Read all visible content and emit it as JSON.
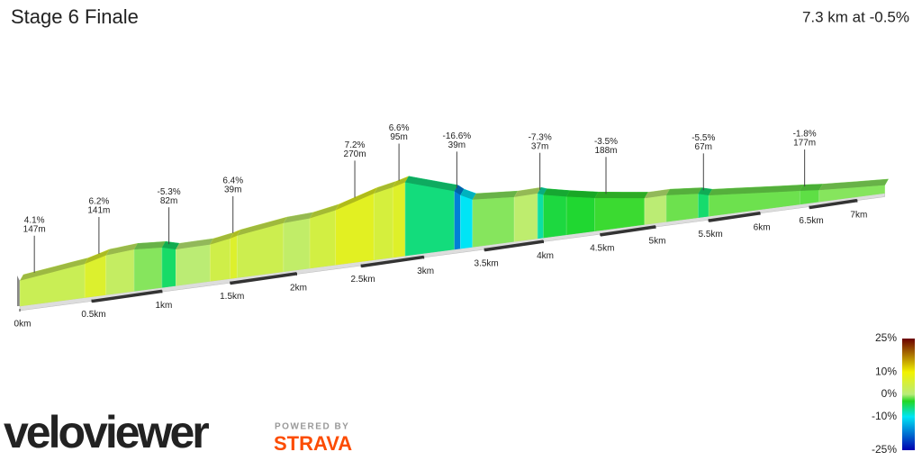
{
  "chart_data": {
    "type": "profile",
    "title": "Stage 6 Finale",
    "subtitle": "7.3 km at -0.5%",
    "xlim": [
      0,
      7.3
    ],
    "xticks": [
      {
        "value": 0,
        "label": "0km"
      },
      {
        "value": 0.5,
        "label": "0.5km"
      },
      {
        "value": 1,
        "label": "1km"
      },
      {
        "value": 1.5,
        "label": "1.5km"
      },
      {
        "value": 2,
        "label": "2km"
      },
      {
        "value": 2.5,
        "label": "2.5km"
      },
      {
        "value": 3,
        "label": "3km"
      },
      {
        "value": 3.5,
        "label": "3.5km"
      },
      {
        "value": 4,
        "label": "4km"
      },
      {
        "value": 4.5,
        "label": "4.5km"
      },
      {
        "value": 5,
        "label": "5km"
      },
      {
        "value": 5.5,
        "label": "5.5km"
      },
      {
        "value": 6,
        "label": "6km"
      },
      {
        "value": 6.5,
        "label": "6.5km"
      },
      {
        "value": 7,
        "label": "7km"
      }
    ],
    "segments": {
      "x": [
        0,
        0.45,
        0.6,
        0.8,
        1.0,
        1.1,
        1.35,
        1.5,
        1.55,
        1.9,
        2.1,
        2.3,
        2.6,
        2.75,
        2.85,
        3.25,
        3.3,
        3.4,
        3.75,
        3.95,
        4.0,
        4.2,
        4.45,
        4.9,
        5.1,
        5.4,
        5.5,
        6.4,
        6.6
      ],
      "grade": [
        3,
        6.2,
        2,
        -1,
        -5.3,
        0.5,
        4,
        6.4,
        3.5,
        1.5,
        4.5,
        7.2,
        5,
        6.6,
        -6,
        -16.6,
        -10,
        -1,
        1,
        -7.3,
        -4,
        -3.5,
        -2.5,
        0.5,
        -1.5,
        -5.5,
        -1.5,
        -1.8,
        -1
      ]
    },
    "climbs": [
      {
        "x": 0.1,
        "grade": "4.1%",
        "length": "147m"
      },
      {
        "x": 0.55,
        "grade": "6.2%",
        "length": "141m"
      },
      {
        "x": 1.05,
        "grade": "-5.3%",
        "length": "82m"
      },
      {
        "x": 1.52,
        "grade": "6.4%",
        "length": "39m"
      },
      {
        "x": 2.45,
        "grade": "7.2%",
        "length": "270m"
      },
      {
        "x": 2.8,
        "grade": "6.6%",
        "length": "95m"
      },
      {
        "x": 3.27,
        "grade": "-16.6%",
        "length": "39m"
      },
      {
        "x": 3.97,
        "grade": "-7.3%",
        "length": "37m"
      },
      {
        "x": 4.55,
        "grade": "-3.5%",
        "length": "188m"
      },
      {
        "x": 5.45,
        "grade": "-5.5%",
        "length": "67m"
      },
      {
        "x": 6.45,
        "grade": "-1.8%",
        "length": "177m"
      }
    ],
    "colorbar": {
      "lim": [
        -25,
        25
      ],
      "ticks": [
        {
          "value": 25,
          "label": "25%",
          "color": "#6b0000"
        },
        {
          "value": 10,
          "label": "10%",
          "color": "#f2f200"
        },
        {
          "value": 0,
          "label": "0%",
          "color": "#b8ec7a"
        },
        {
          "value": -3,
          "label": "",
          "color": "#22d622"
        },
        {
          "value": -10,
          "label": "-10%",
          "color": "#00e5f5"
        },
        {
          "value": -25,
          "label": "-25%",
          "color": "#0000b0"
        }
      ]
    }
  },
  "branding": {
    "logo": "veloviewer",
    "powered": "POWERED BY",
    "strava": "STRAVA"
  }
}
